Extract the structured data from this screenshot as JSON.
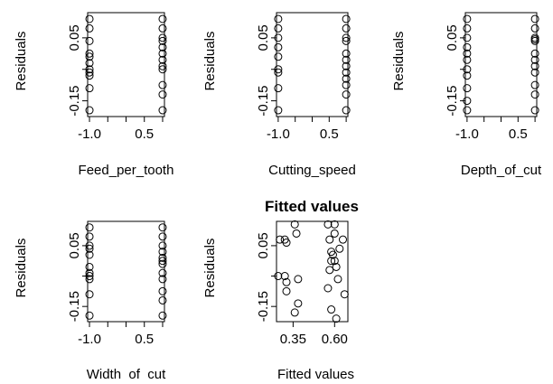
{
  "chart_data": [
    {
      "type": "scatter",
      "title": "",
      "xlabel": "Feed_per_tooth",
      "ylabel": "Residuals",
      "x_ticks": [
        "-1.0",
        "0.5"
      ],
      "y_ticks": [
        "-0.15",
        "0.05"
      ],
      "xlim": [
        -1.05,
        1.05
      ],
      "ylim": [
        -0.2,
        0.13
      ],
      "points": [
        {
          "x": -1,
          "y": 0.11
        },
        {
          "x": -1,
          "y": 0.08
        },
        {
          "x": -1,
          "y": 0.04
        },
        {
          "x": -1,
          "y": 0.0
        },
        {
          "x": -1,
          "y": -0.01
        },
        {
          "x": -1,
          "y": -0.03
        },
        {
          "x": -1,
          "y": -0.05
        },
        {
          "x": -1,
          "y": -0.06
        },
        {
          "x": -1,
          "y": -0.07
        },
        {
          "x": -1,
          "y": -0.11
        },
        {
          "x": -1,
          "y": -0.18
        },
        {
          "x": 1,
          "y": 0.11
        },
        {
          "x": 1,
          "y": 0.08
        },
        {
          "x": 1,
          "y": 0.05
        },
        {
          "x": 1,
          "y": 0.04
        },
        {
          "x": 1,
          "y": 0.02
        },
        {
          "x": 1,
          "y": 0.0
        },
        {
          "x": 1,
          "y": -0.02
        },
        {
          "x": 1,
          "y": -0.04
        },
        {
          "x": 1,
          "y": -0.05
        },
        {
          "x": 1,
          "y": -0.1
        },
        {
          "x": 1,
          "y": -0.13
        },
        {
          "x": 1,
          "y": -0.18
        }
      ]
    },
    {
      "type": "scatter",
      "title": "",
      "xlabel": "Cutting_speed",
      "ylabel": "Residuals",
      "x_ticks": [
        "-1.0",
        "0.5"
      ],
      "y_ticks": [
        "-0.15",
        "0.05"
      ],
      "xlim": [
        -1.05,
        1.05
      ],
      "ylim": [
        -0.2,
        0.13
      ],
      "points": [
        {
          "x": -1,
          "y": 0.11
        },
        {
          "x": -1,
          "y": 0.08
        },
        {
          "x": -1,
          "y": 0.05
        },
        {
          "x": -1,
          "y": 0.02
        },
        {
          "x": -1,
          "y": -0.01
        },
        {
          "x": -1,
          "y": -0.05
        },
        {
          "x": -1,
          "y": -0.06
        },
        {
          "x": -1,
          "y": -0.11
        },
        {
          "x": -1,
          "y": -0.18
        },
        {
          "x": 1,
          "y": 0.11
        },
        {
          "x": 1,
          "y": 0.08
        },
        {
          "x": 1,
          "y": 0.05
        },
        {
          "x": 1,
          "y": 0.04
        },
        {
          "x": 1,
          "y": 0.0
        },
        {
          "x": 1,
          "y": -0.02
        },
        {
          "x": 1,
          "y": -0.04
        },
        {
          "x": 1,
          "y": -0.06
        },
        {
          "x": 1,
          "y": -0.08
        },
        {
          "x": 1,
          "y": -0.1
        },
        {
          "x": 1,
          "y": -0.13
        },
        {
          "x": 1,
          "y": -0.18
        }
      ]
    },
    {
      "type": "scatter",
      "title": "",
      "xlabel": "Depth_of_cut",
      "ylabel": "Residuals",
      "x_ticks": [
        "-1.0",
        "0.5"
      ],
      "y_ticks": [
        "-0.15",
        "0.05"
      ],
      "xlim": [
        -1.05,
        1.05
      ],
      "ylim": [
        -0.2,
        0.13
      ],
      "points": [
        {
          "x": -1,
          "y": 0.11
        },
        {
          "x": -1,
          "y": 0.08
        },
        {
          "x": -1,
          "y": 0.05
        },
        {
          "x": -1,
          "y": 0.02
        },
        {
          "x": -1,
          "y": 0.0
        },
        {
          "x": -1,
          "y": -0.02
        },
        {
          "x": -1,
          "y": -0.05
        },
        {
          "x": -1,
          "y": -0.07
        },
        {
          "x": -1,
          "y": -0.11
        },
        {
          "x": -1,
          "y": -0.15
        },
        {
          "x": -1,
          "y": -0.18
        },
        {
          "x": 1,
          "y": 0.11
        },
        {
          "x": 1,
          "y": 0.08
        },
        {
          "x": 1,
          "y": 0.05
        },
        {
          "x": 1,
          "y": 0.045
        },
        {
          "x": 1,
          "y": 0.04
        },
        {
          "x": 1,
          "y": 0.0
        },
        {
          "x": 1,
          "y": -0.02
        },
        {
          "x": 1,
          "y": -0.04
        },
        {
          "x": 1,
          "y": -0.06
        },
        {
          "x": 1,
          "y": -0.1
        },
        {
          "x": 1,
          "y": -0.13
        },
        {
          "x": 1,
          "y": -0.18
        }
      ]
    },
    {
      "type": "scatter",
      "title": "",
      "xlabel": "Width  of  cut",
      "ylabel": "Residuals",
      "x_ticks": [
        "-1.0",
        "0.5"
      ],
      "y_ticks": [
        "-0.15",
        "0.05"
      ],
      "xlim": [
        -1.05,
        1.05
      ],
      "ylim": [
        -0.2,
        0.13
      ],
      "points": [
        {
          "x": -1,
          "y": 0.11
        },
        {
          "x": -1,
          "y": 0.08
        },
        {
          "x": -1,
          "y": 0.05
        },
        {
          "x": -1,
          "y": 0.04
        },
        {
          "x": -1,
          "y": 0.02
        },
        {
          "x": -1,
          "y": -0.02
        },
        {
          "x": -1,
          "y": -0.04
        },
        {
          "x": -1,
          "y": -0.05
        },
        {
          "x": -1,
          "y": -0.06
        },
        {
          "x": -1,
          "y": -0.11
        },
        {
          "x": -1,
          "y": -0.18
        },
        {
          "x": 1,
          "y": 0.11
        },
        {
          "x": 1,
          "y": 0.08
        },
        {
          "x": 1,
          "y": 0.05
        },
        {
          "x": 1,
          "y": 0.03
        },
        {
          "x": 1,
          "y": 0.01
        },
        {
          "x": 1,
          "y": 0.0
        },
        {
          "x": 1,
          "y": -0.01
        },
        {
          "x": 1,
          "y": -0.04
        },
        {
          "x": 1,
          "y": -0.06
        },
        {
          "x": 1,
          "y": -0.1
        },
        {
          "x": 1,
          "y": -0.13
        },
        {
          "x": 1,
          "y": -0.18
        }
      ]
    },
    {
      "type": "scatter",
      "title": "Fitted values",
      "xlabel": "Fitted values",
      "ylabel": "Residuals",
      "x_ticks": [
        "0.35",
        "0.60"
      ],
      "x_tick_values": [
        0.35,
        0.6
      ],
      "y_ticks": [
        "-0.15",
        "0.05"
      ],
      "xlim": [
        0.25,
        0.68
      ],
      "ylim": [
        -0.2,
        0.13
      ],
      "points": [
        {
          "x": 0.27,
          "y": 0.07
        },
        {
          "x": 0.26,
          "y": -0.05
        },
        {
          "x": 0.3,
          "y": 0.07
        },
        {
          "x": 0.31,
          "y": 0.06
        },
        {
          "x": 0.3,
          "y": -0.05
        },
        {
          "x": 0.31,
          "y": -0.07
        },
        {
          "x": 0.31,
          "y": -0.1
        },
        {
          "x": 0.36,
          "y": 0.12
        },
        {
          "x": 0.37,
          "y": 0.09
        },
        {
          "x": 0.38,
          "y": -0.06
        },
        {
          "x": 0.38,
          "y": -0.14
        },
        {
          "x": 0.36,
          "y": -0.17
        },
        {
          "x": 0.56,
          "y": 0.12
        },
        {
          "x": 0.57,
          "y": 0.07
        },
        {
          "x": 0.58,
          "y": 0.03
        },
        {
          "x": 0.58,
          "y": 0.0
        },
        {
          "x": 0.57,
          "y": -0.03
        },
        {
          "x": 0.56,
          "y": -0.09
        },
        {
          "x": 0.58,
          "y": -0.16
        },
        {
          "x": 0.6,
          "y": 0.09
        },
        {
          "x": 0.59,
          "y": 0.02
        },
        {
          "x": 0.6,
          "y": 0.0
        },
        {
          "x": 0.61,
          "y": -0.02
        },
        {
          "x": 0.62,
          "y": -0.06
        },
        {
          "x": 0.63,
          "y": 0.04
        },
        {
          "x": 0.65,
          "y": 0.07
        },
        {
          "x": 0.66,
          "y": -0.11
        },
        {
          "x": 0.61,
          "y": -0.19
        },
        {
          "x": 0.6,
          "y": 0.12
        }
      ]
    }
  ]
}
